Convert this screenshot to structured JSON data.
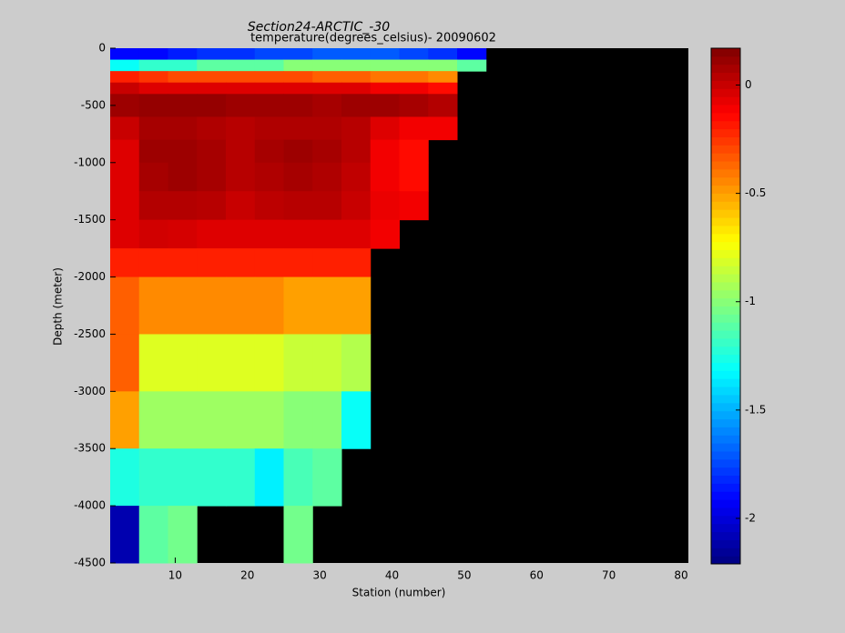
{
  "chart_data": {
    "type": "heatmap",
    "title": "Section24-ARCTIC_-30",
    "subtitle": "temperature(degrees_celsius)- 20090602",
    "x_label": "Station (number)",
    "y_label": "Depth (meter)",
    "x_edges": [
      1,
      5,
      9,
      13,
      17,
      21,
      25,
      29,
      33,
      37,
      41,
      45,
      49,
      53
    ],
    "y_edges": [
      0,
      -100,
      -200,
      -300,
      -400,
      -600,
      -800,
      -1000,
      -1250,
      -1500,
      -1750,
      -2000,
      -2500,
      -3000,
      -3500,
      -4000,
      -4500
    ],
    "values": [
      [
        -1.9,
        -1.9,
        -1.85,
        -1.8,
        -1.8,
        -1.75,
        -1.75,
        -1.7,
        -1.7,
        -1.7,
        -1.75,
        -1.8,
        -1.9
      ],
      [
        -1.3,
        -1.2,
        -1.2,
        -1.1,
        -1.1,
        -1.1,
        -1.0,
        -1.0,
        -1.0,
        -1.0,
        -1.0,
        -1.0,
        -1.1
      ],
      [
        -0.2,
        -0.25,
        -0.3,
        -0.3,
        -0.3,
        -0.3,
        -0.3,
        -0.35,
        -0.35,
        -0.4,
        -0.4,
        -0.45,
        null
      ],
      [
        0.0,
        -0.05,
        -0.05,
        -0.05,
        -0.05,
        -0.05,
        -0.05,
        -0.05,
        -0.05,
        -0.1,
        -0.1,
        -0.15,
        null
      ],
      [
        0.1,
        0.12,
        0.12,
        0.12,
        0.1,
        0.1,
        0.1,
        0.08,
        0.1,
        0.1,
        0.08,
        0.05,
        null
      ],
      [
        0.0,
        0.08,
        0.08,
        0.06,
        0.04,
        0.06,
        0.06,
        0.06,
        0.04,
        -0.05,
        -0.1,
        -0.1,
        null
      ],
      [
        -0.05,
        0.1,
        0.1,
        0.08,
        0.04,
        0.08,
        0.1,
        0.08,
        0.04,
        -0.1,
        -0.15,
        null,
        null
      ],
      [
        -0.05,
        0.08,
        0.1,
        0.08,
        0.04,
        0.06,
        0.08,
        0.06,
        0.02,
        -0.1,
        -0.15,
        null,
        null
      ],
      [
        -0.05,
        0.05,
        0.05,
        0.04,
        0.0,
        0.03,
        0.04,
        0.04,
        0.0,
        -0.08,
        -0.1,
        null,
        null
      ],
      [
        -0.05,
        -0.02,
        -0.03,
        -0.05,
        -0.05,
        -0.05,
        -0.05,
        -0.05,
        -0.05,
        -0.1,
        null,
        null,
        null
      ],
      [
        -0.2,
        -0.2,
        -0.2,
        -0.2,
        -0.2,
        -0.2,
        -0.2,
        -0.2,
        -0.2,
        null,
        null,
        null,
        null
      ],
      [
        -0.35,
        -0.45,
        -0.45,
        -0.45,
        -0.45,
        -0.45,
        -0.5,
        -0.5,
        -0.5,
        null,
        null,
        null,
        null
      ],
      [
        -0.35,
        -0.8,
        -0.8,
        -0.8,
        -0.8,
        -0.8,
        -0.85,
        -0.85,
        -0.9,
        null,
        null,
        null,
        null
      ],
      [
        -0.5,
        -0.95,
        -0.95,
        -0.95,
        -0.95,
        -0.95,
        -1.0,
        -1.0,
        -1.3,
        null,
        null,
        null,
        null
      ],
      [
        -1.25,
        -1.2,
        -1.2,
        -1.2,
        -1.2,
        -1.35,
        -1.15,
        -1.1,
        null,
        null,
        null,
        null,
        null
      ],
      [
        -2.1,
        -1.1,
        -1.05,
        null,
        null,
        null,
        -1.05,
        null,
        null,
        null,
        null,
        null,
        null
      ]
    ],
    "xlim": [
      1,
      81
    ],
    "ylim": [
      -4500,
      0
    ],
    "xticks": [
      10,
      20,
      30,
      40,
      50,
      60,
      70,
      80
    ],
    "yticks": [
      0,
      -500,
      -1000,
      -1500,
      -2000,
      -2500,
      -3000,
      -3500,
      -4000,
      -4500
    ],
    "clim": [
      -2.21,
      0.17
    ],
    "cticks": [
      -2,
      -1.5,
      -1,
      -0.5,
      0
    ],
    "colormap": "jet",
    "nodata_color": "#000000"
  }
}
